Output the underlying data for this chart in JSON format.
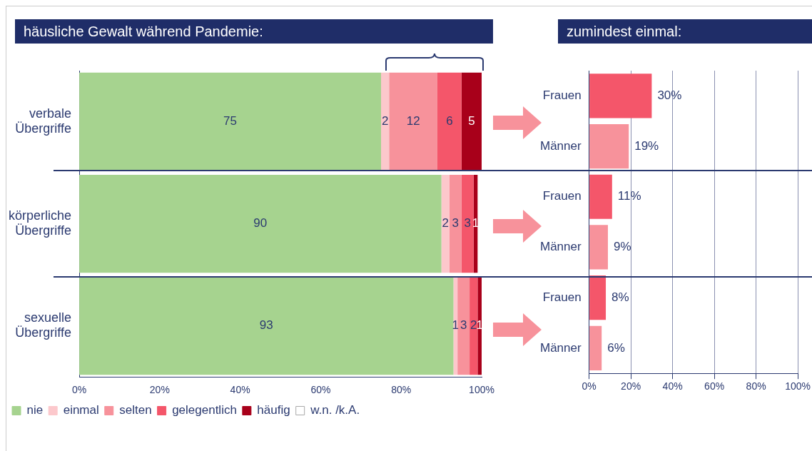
{
  "chart_data": [
    {
      "type": "bar",
      "orientation": "horizontal",
      "stacked": true,
      "title": "häusliche Gewalt während Pandemie:",
      "categories": [
        "verbale Übergriffe",
        "körperliche Übergriffe",
        "sexuelle Übergriffe"
      ],
      "series": [
        {
          "name": "nie",
          "color": "#a6d38f",
          "values": [
            75,
            90,
            93
          ]
        },
        {
          "name": "einmal",
          "color": "#fcc8cc",
          "values": [
            2,
            2,
            1
          ]
        },
        {
          "name": "selten",
          "color": "#f7929b",
          "values": [
            12,
            3,
            3
          ]
        },
        {
          "name": "gelegentlich",
          "color": "#f4566a",
          "values": [
            6,
            3,
            2
          ]
        },
        {
          "name": "häufig",
          "color": "#a8001a",
          "values": [
            5,
            1,
            1
          ]
        },
        {
          "name": "w.n. /k.A.",
          "color": "#ffffff",
          "values": [
            null,
            null,
            null
          ]
        }
      ],
      "xlim": [
        0,
        100
      ],
      "xticks": [
        {
          "value": 0,
          "label": "0%"
        },
        {
          "value": 20,
          "label": "20%"
        },
        {
          "value": 40,
          "label": "40%"
        },
        {
          "value": 60,
          "label": "60%"
        },
        {
          "value": 80,
          "label": "80%"
        },
        {
          "value": 100,
          "label": "100%"
        }
      ],
      "data_labels": true,
      "legend": "bottom",
      "grid": false
    },
    {
      "type": "bar",
      "orientation": "horizontal",
      "title": "zumindest einmal:",
      "categories": [
        "Frauen",
        "Männer",
        "Frauen",
        "Männer",
        "Frauen",
        "Männer"
      ],
      "values": [
        30,
        19,
        11,
        9,
        8,
        6
      ],
      "colors": [
        "#f4566a",
        "#f7929b",
        "#f4566a",
        "#f7929b",
        "#f4566a",
        "#f7929b"
      ],
      "value_labels": [
        "30%",
        "19%",
        "11%",
        "9%",
        "8%",
        "6%"
      ],
      "xlim": [
        0,
        100
      ],
      "xticks": [
        {
          "value": 0,
          "label": "0%"
        },
        {
          "value": 20,
          "label": "20%"
        },
        {
          "value": 40,
          "label": "40%"
        },
        {
          "value": 60,
          "label": "60%"
        },
        {
          "value": 80,
          "label": "80%"
        },
        {
          "value": 100,
          "label": "100%"
        }
      ],
      "grid": "x",
      "legend": false
    }
  ]
}
